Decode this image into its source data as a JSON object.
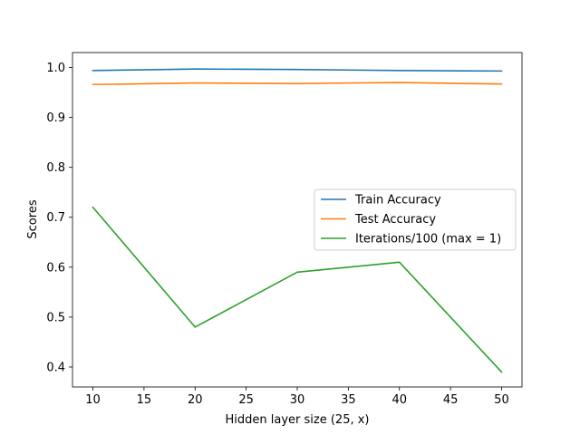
{
  "chart_data": {
    "type": "line",
    "title": "",
    "xlabel": "Hidden layer size (25, x)",
    "ylabel": "Scores",
    "x": [
      10,
      20,
      30,
      40,
      50
    ],
    "xticks": [
      "10",
      "15",
      "20",
      "25",
      "30",
      "35",
      "40",
      "45",
      "50"
    ],
    "yticks": [
      "0.4",
      "0.5",
      "0.6",
      "0.7",
      "0.8",
      "0.9",
      "1.0"
    ],
    "xlim": [
      8,
      52
    ],
    "ylim": [
      0.36,
      1.03
    ],
    "grid": false,
    "legend_placement": "center-right",
    "series": [
      {
        "name": "Train Accuracy",
        "color": "#1f77b4",
        "values": [
          0.994,
          0.997,
          0.996,
          0.994,
          0.993
        ]
      },
      {
        "name": "Test Accuracy",
        "color": "#ff7f0e",
        "values": [
          0.966,
          0.969,
          0.968,
          0.97,
          0.967
        ]
      },
      {
        "name": "Iterations/100 (max = 1)",
        "color": "#2ca02c",
        "values": [
          0.72,
          0.48,
          0.59,
          0.61,
          0.39
        ]
      }
    ]
  }
}
